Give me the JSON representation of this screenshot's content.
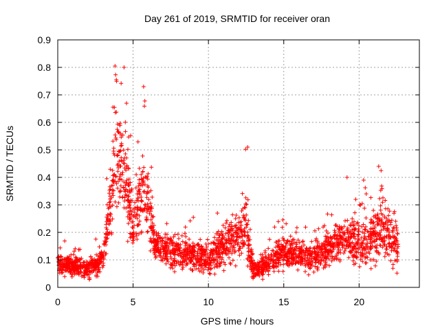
{
  "chart_data": {
    "type": "scatter",
    "title": "Day 261 of 2019, SRMTID for receiver oran",
    "xlabel": "GPS time / hours",
    "ylabel": "SRMTID / TECUs",
    "xlim": [
      0,
      24
    ],
    "ylim": [
      0,
      0.9
    ],
    "xticks": [
      0,
      5,
      10,
      15,
      20
    ],
    "yticks": [
      0,
      0.1,
      0.2,
      0.3,
      0.4,
      0.5,
      0.6,
      0.7,
      0.8,
      0.9
    ],
    "xtick_labels": [
      "0",
      "5",
      "10",
      "15",
      "20"
    ],
    "ytick_labels": [
      "0",
      "0.1",
      "0.2",
      "0.3",
      "0.4",
      "0.5",
      "0.6",
      "0.7",
      "0.8",
      "0.9"
    ],
    "grid": true,
    "marker": "+",
    "color": "#ff0000",
    "x_data_range": [
      0,
      22.6
    ],
    "n_points": 2600,
    "envelope": [
      {
        "x": 0.0,
        "y": 0.08,
        "spread": 0.05
      },
      {
        "x": 1.0,
        "y": 0.07,
        "spread": 0.05
      },
      {
        "x": 2.0,
        "y": 0.06,
        "spread": 0.05
      },
      {
        "x": 3.0,
        "y": 0.09,
        "spread": 0.07
      },
      {
        "x": 3.5,
        "y": 0.3,
        "spread": 0.18
      },
      {
        "x": 4.0,
        "y": 0.45,
        "spread": 0.25
      },
      {
        "x": 4.5,
        "y": 0.4,
        "spread": 0.25
      },
      {
        "x": 5.0,
        "y": 0.2,
        "spread": 0.12
      },
      {
        "x": 5.7,
        "y": 0.35,
        "spread": 0.2
      },
      {
        "x": 6.5,
        "y": 0.14,
        "spread": 0.08
      },
      {
        "x": 8.0,
        "y": 0.12,
        "spread": 0.08
      },
      {
        "x": 10.0,
        "y": 0.1,
        "spread": 0.08
      },
      {
        "x": 12.5,
        "y": 0.2,
        "spread": 0.14
      },
      {
        "x": 13.0,
        "y": 0.05,
        "spread": 0.05
      },
      {
        "x": 15.0,
        "y": 0.12,
        "spread": 0.08
      },
      {
        "x": 17.0,
        "y": 0.1,
        "spread": 0.08
      },
      {
        "x": 19.0,
        "y": 0.16,
        "spread": 0.12
      },
      {
        "x": 20.5,
        "y": 0.15,
        "spread": 0.12
      },
      {
        "x": 21.5,
        "y": 0.2,
        "spread": 0.15
      },
      {
        "x": 22.6,
        "y": 0.12,
        "spread": 0.1
      }
    ],
    "notable_points": [
      {
        "x": 3.8,
        "y": 0.805
      },
      {
        "x": 4.4,
        "y": 0.8
      },
      {
        "x": 5.7,
        "y": 0.73
      },
      {
        "x": 12.6,
        "y": 0.51
      },
      {
        "x": 21.3,
        "y": 0.44
      },
      {
        "x": 19.2,
        "y": 0.4
      },
      {
        "x": 20.3,
        "y": 0.39
      }
    ]
  }
}
